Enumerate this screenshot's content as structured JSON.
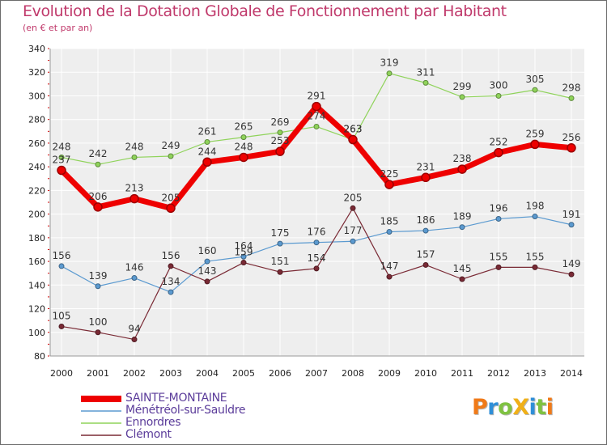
{
  "title": "Evolution de la Dotation Globale de Fonctionnement par Habitant",
  "subtitle": "(en € et par an)",
  "logo": {
    "text": "ProXiti"
  },
  "chart_data": {
    "type": "line",
    "title": "Evolution de la Dotation Globale de Fonctionnement par Habitant",
    "subtitle": "(en € et par an)",
    "xlabel": "",
    "ylabel": "",
    "x": [
      "2000",
      "2001",
      "2002",
      "2003",
      "2004",
      "2005",
      "2006",
      "2007",
      "2008",
      "2009",
      "2010",
      "2011",
      "2012",
      "2013",
      "2014"
    ],
    "ylim": [
      80,
      340
    ],
    "yticks": [
      80,
      100,
      120,
      140,
      160,
      180,
      200,
      220,
      240,
      260,
      280,
      300,
      320,
      340
    ],
    "grid": true,
    "legend_position": "bottom-left",
    "series": [
      {
        "name": "Ennordres",
        "color": "#8fd35a",
        "width": 1.2,
        "values": [
          248,
          242,
          248,
          249,
          261,
          265,
          269,
          274,
          263,
          319,
          311,
          299,
          300,
          305,
          298
        ]
      },
      {
        "name": "Ménétréol-sur-Sauldre",
        "color": "#5b9ad0",
        "width": 1.2,
        "values": [
          156,
          139,
          146,
          134,
          160,
          164,
          175,
          176,
          177,
          185,
          186,
          189,
          196,
          198,
          191
        ]
      },
      {
        "name": "Clémont",
        "color": "#7a2a35",
        "width": 1.2,
        "values": [
          105,
          100,
          94,
          156,
          143,
          159,
          151,
          154,
          205,
          147,
          157,
          145,
          155,
          155,
          149
        ]
      },
      {
        "name": "SAINTE-MONTAINE",
        "color": "#ee0000",
        "width": 7,
        "values": [
          237,
          206,
          213,
          205,
          244,
          248,
          253,
          291,
          263,
          225,
          231,
          238,
          252,
          259,
          256
        ]
      }
    ],
    "legend_order": [
      "SAINTE-MONTAINE",
      "Ménétréol-sur-Sauldre",
      "Ennordres",
      "Clémont"
    ]
  }
}
